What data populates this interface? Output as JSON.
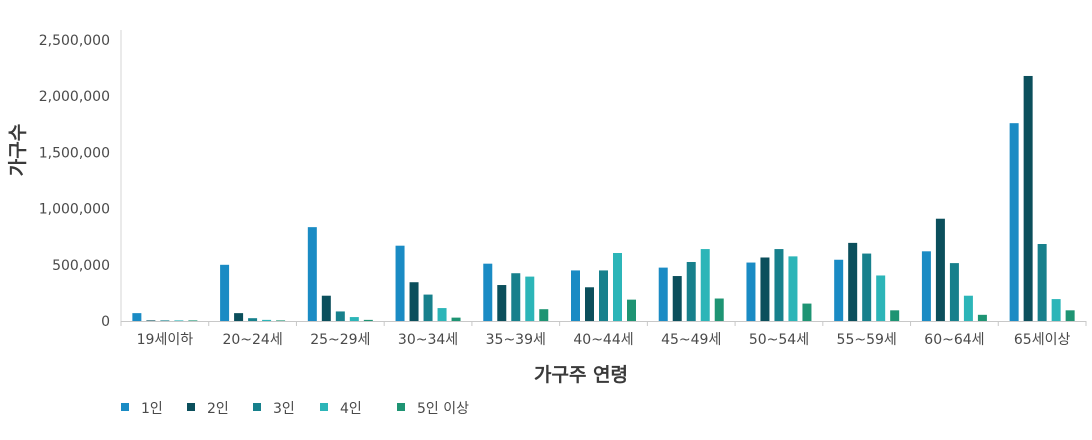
{
  "chart_data": {
    "type": "bar",
    "title": "",
    "xlabel": "가구주 연령",
    "ylabel": "가구수",
    "ylim": [
      0,
      2500000
    ],
    "yticks": [
      0,
      500000,
      1000000,
      1500000,
      2000000,
      2500000
    ],
    "ytick_labels": [
      "0",
      "500,000",
      "1,000,000",
      "1,500,000",
      "2,000,000",
      "2,500,000"
    ],
    "grid": false,
    "legend_position": "bottom-left",
    "categories": [
      "19세이하",
      "20~24세",
      "25~29세",
      "30~34세",
      "35~39세",
      "40~44세",
      "45~49세",
      "50~54세",
      "55~59세",
      "60~64세",
      "65세이상"
    ],
    "series": [
      {
        "name": "1인",
        "color": "#1a8bc4",
        "values": [
          70000,
          500000,
          835000,
          670000,
          510000,
          450000,
          475000,
          520000,
          545000,
          620000,
          1760000
        ]
      },
      {
        "name": "2인",
        "color": "#0b4f5c",
        "values": [
          5000,
          70000,
          225000,
          345000,
          320000,
          300000,
          400000,
          565000,
          695000,
          910000,
          2180000
        ]
      },
      {
        "name": "3인",
        "color": "#17808c",
        "values": [
          3000,
          25000,
          85000,
          235000,
          425000,
          450000,
          525000,
          640000,
          600000,
          515000,
          685000
        ]
      },
      {
        "name": "4인",
        "color": "#2cb5b8",
        "values": [
          1000,
          10000,
          35000,
          115000,
          395000,
          605000,
          640000,
          575000,
          405000,
          225000,
          195000
        ]
      },
      {
        "name": "5인 이상",
        "color": "#1e9473",
        "values": [
          500,
          3000,
          10000,
          30000,
          105000,
          190000,
          200000,
          155000,
          95000,
          55000,
          95000
        ]
      }
    ]
  }
}
